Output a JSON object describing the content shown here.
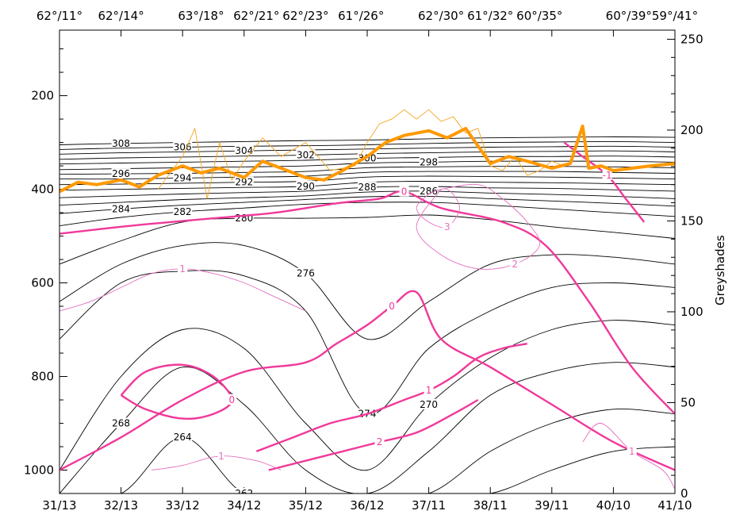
{
  "chart_data": {
    "type": "contour",
    "top_axis_labels": [
      "62°/11°",
      "62°/14°",
      "63°/18°",
      "62°/21°",
      "62°/23°",
      "61°/26°",
      "62°/30°",
      "61°/32°",
      "60°/35°",
      "60°/39°",
      "59°/41°"
    ],
    "top_axis_x": [
      31.0,
      32.0,
      33.3,
      34.2,
      35.0,
      35.9,
      37.2,
      38.0,
      38.8,
      40.25,
      41.0
    ],
    "bottom_axis_labels": [
      "31/13",
      "32/13",
      "33/12",
      "34/12",
      "35/12",
      "36/12",
      "37/11",
      "38/11",
      "39/11",
      "40/10",
      "41/10"
    ],
    "xlim": [
      31,
      41
    ],
    "left_axis": {
      "ticks": [
        200,
        400,
        600,
        800,
        1000
      ],
      "ylim": [
        1050,
        60
      ],
      "direction": "inverted"
    },
    "right_axis": {
      "label": "Greyshades",
      "ticks": [
        0,
        50,
        100,
        150,
        200,
        250
      ],
      "ylim": [
        0,
        255
      ]
    },
    "colors": {
      "isentropes": "#000000",
      "pv_bold": "#f0399a",
      "pv_thin": "#e36fc0",
      "tropopause_bold": "#ff9900",
      "tropopause_thin": "#f5a623"
    },
    "isentropes": [
      {
        "label": "308",
        "x": [
          31,
          32,
          33,
          34,
          35,
          36,
          37,
          38,
          39,
          40,
          41
        ],
        "y": [
          305,
          302,
          300,
          298,
          296,
          295,
          292,
          290,
          289,
          288,
          289
        ]
      },
      {
        "label": "306",
        "x": [
          31,
          32,
          33,
          34,
          35,
          36,
          37,
          38,
          39,
          40,
          41
        ],
        "y": [
          315,
          312,
          310,
          308,
          307,
          305,
          302,
          300,
          299,
          298,
          300
        ]
      },
      {
        "label": "304",
        "x": [
          31,
          32,
          33,
          34,
          35,
          36,
          37,
          38,
          39,
          40,
          41
        ],
        "y": [
          325,
          322,
          320,
          318,
          316,
          314,
          312,
          310,
          309,
          308,
          310
        ]
      },
      {
        "label": "302",
        "x": [
          31,
          32,
          33,
          34,
          35,
          36,
          37,
          38,
          39,
          40,
          41
        ],
        "y": [
          336,
          333,
          331,
          329,
          327,
          324,
          322,
          320,
          319,
          318,
          320
        ]
      },
      {
        "label": "300",
        "x": [
          31,
          32,
          33,
          34,
          35,
          36,
          37,
          38,
          39,
          40,
          41
        ],
        "y": [
          346,
          344,
          342,
          340,
          338,
          334,
          332,
          330,
          330,
          329,
          331
        ]
      },
      {
        "label": "298",
        "x": [
          31,
          32,
          33,
          34,
          35,
          36,
          37,
          38,
          39,
          40,
          41
        ],
        "y": [
          358,
          356,
          354,
          352,
          350,
          344,
          342,
          340,
          340,
          340,
          342
        ]
      },
      {
        "label": "296",
        "x": [
          31,
          32,
          33,
          34,
          35,
          36,
          37,
          38,
          39,
          40,
          41
        ],
        "y": [
          368,
          367,
          366,
          364,
          362,
          354,
          352,
          351,
          351,
          352,
          354
        ]
      },
      {
        "label": "294",
        "x": [
          31,
          32,
          33,
          34,
          35,
          36,
          37,
          38,
          39,
          40,
          41
        ],
        "y": [
          378,
          378,
          376,
          374,
          372,
          364,
          362,
          362,
          362,
          364,
          366
        ]
      },
      {
        "label": "292",
        "x": [
          31,
          32,
          33,
          34,
          35,
          36,
          37,
          38,
          39,
          40,
          41
        ],
        "y": [
          390,
          389,
          387,
          385,
          383,
          374,
          372,
          373,
          374,
          376,
          378
        ]
      },
      {
        "label": "290",
        "x": [
          31,
          32,
          33,
          34,
          35,
          36,
          37,
          38,
          39,
          40,
          41
        ],
        "y": [
          402,
          400,
          398,
          396,
          394,
          385,
          383,
          385,
          386,
          388,
          390
        ]
      },
      {
        "label": "288",
        "x": [
          31,
          32,
          33,
          34,
          35,
          36,
          37,
          38,
          39,
          40,
          41
        ],
        "y": [
          418,
          414,
          410,
          407,
          404,
          396,
          394,
          397,
          398,
          401,
          404
        ]
      },
      {
        "label": "286",
        "x": [
          31,
          32,
          33,
          34,
          35,
          36,
          37,
          38,
          39,
          40,
          41
        ],
        "y": [
          434,
          428,
          422,
          418,
          414,
          406,
          404,
          408,
          411,
          415,
          420
        ]
      },
      {
        "label": "284",
        "x": [
          31,
          32,
          33,
          34,
          35,
          36,
          37,
          38,
          39,
          40,
          41
        ],
        "y": [
          452,
          442,
          434,
          428,
          422,
          416,
          415,
          420,
          425,
          430,
          436
        ]
      },
      {
        "label": "282",
        "x": [
          31,
          32,
          33,
          34,
          35,
          36,
          37,
          38,
          39,
          40,
          41
        ],
        "y": [
          478,
          460,
          448,
          440,
          432,
          428,
          428,
          434,
          442,
          450,
          458
        ]
      },
      {
        "label": "280",
        "x": [
          31,
          32,
          33,
          34,
          35,
          36,
          37,
          38,
          39,
          40,
          41
        ],
        "y": [
          560,
          510,
          470,
          462,
          462,
          460,
          455,
          465,
          480,
          492,
          505
        ]
      },
      {
        "label": "276",
        "x": [
          31,
          32,
          33,
          34,
          35,
          36,
          37,
          38,
          39,
          40,
          41
        ],
        "y": [
          640,
          560,
          520,
          520,
          580,
          720,
          640,
          560,
          540,
          545,
          560
        ]
      },
      {
        "label": "274",
        "x": [
          31,
          32,
          33,
          34,
          35,
          36,
          37,
          38,
          39,
          40,
          41
        ],
        "y": [
          720,
          600,
          575,
          585,
          660,
          880,
          740,
          660,
          610,
          600,
          610
        ]
      },
      {
        "label": "270",
        "x": [
          31,
          32,
          33,
          34,
          35,
          36,
          37,
          38,
          39,
          40,
          41
        ],
        "y": [
          1000,
          800,
          700,
          740,
          900,
          1000,
          860,
          760,
          700,
          680,
          690
        ]
      },
      {
        "label": "268",
        "x": [
          31,
          32,
          33,
          34,
          35,
          36,
          37,
          38,
          39,
          40,
          41
        ],
        "y": [
          1050,
          900,
          780,
          860,
          1000,
          1050,
          960,
          840,
          790,
          770,
          780
        ]
      },
      {
        "label": "264",
        "x": [
          31,
          32,
          33,
          34,
          35,
          36,
          37,
          38,
          39,
          40,
          41
        ],
        "y": [
          1050,
          1050,
          930,
          1050,
          1050,
          1050,
          1050,
          960,
          900,
          870,
          880
        ]
      },
      {
        "label": "262",
        "x": [
          31,
          32,
          33,
          34,
          35,
          36,
          37,
          38,
          39,
          40,
          41
        ],
        "y": [
          1050,
          1050,
          1050,
          1050,
          1050,
          1050,
          1050,
          1050,
          1000,
          960,
          950
        ]
      }
    ],
    "pv_contours": [
      {
        "label": "0",
        "style": "bold",
        "x": [
          31,
          32,
          32.8,
          33.5,
          34.5,
          35.5,
          36.2,
          36.6,
          37.2,
          38.2,
          38.9,
          39.6,
          40.3,
          41
        ],
        "y": [
          495,
          480,
          470,
          462,
          450,
          430,
          420,
          405,
          440,
          470,
          520,
          640,
          780,
          880
        ]
      },
      {
        "label": "0",
        "style": "bold",
        "x": [
          31,
          32,
          33,
          34,
          35,
          35.5,
          36,
          36.4,
          36.8,
          37.2,
          38,
          39,
          40,
          41
        ],
        "y": [
          1000,
          930,
          850,
          790,
          770,
          730,
          690,
          650,
          620,
          720,
          780,
          860,
          940,
          1000
        ]
      },
      {
        "label": "0",
        "style": "bold",
        "x": [
          32.0,
          32.4,
          33,
          33.5,
          33.8,
          33.5,
          33,
          32.4,
          32.0
        ],
        "y": [
          840,
          790,
          775,
          800,
          850,
          880,
          890,
          870,
          840
        ]
      },
      {
        "label": "1",
        "style": "bold",
        "x": [
          34.2,
          34.8,
          35.4,
          36,
          36.6,
          37,
          37.4,
          37.8,
          38.2,
          38.6
        ],
        "y": [
          960,
          930,
          900,
          880,
          850,
          830,
          800,
          760,
          740,
          730
        ]
      },
      {
        "label": "2",
        "style": "bold",
        "x": [
          34.4,
          35,
          35.6,
          36.2,
          36.8,
          37.4,
          37.8
        ],
        "y": [
          1000,
          980,
          960,
          940,
          920,
          880,
          850
        ]
      },
      {
        "label": "-1",
        "style": "bold",
        "x": [
          39.2,
          39.5,
          39.9,
          40.2,
          40.5
        ],
        "y": [
          300,
          330,
          370,
          420,
          470
        ]
      },
      {
        "label": "1",
        "style": "thin",
        "x": [
          31,
          31.5,
          32,
          32.5,
          33,
          33.5,
          34,
          34.5,
          35
        ],
        "y": [
          660,
          640,
          610,
          580,
          570,
          580,
          600,
          630,
          660
        ]
      },
      {
        "label": "2",
        "style": "thin",
        "x": [
          37.2,
          37.8,
          38.2,
          38.6,
          38.8,
          38.4,
          37.8,
          37.2,
          36.8,
          37.2
        ],
        "y": [
          400,
          390,
          420,
          470,
          520,
          560,
          570,
          540,
          480,
          400
        ]
      },
      {
        "label": "3",
        "style": "thin",
        "x": [
          37.0,
          37.3,
          37.5,
          37.3,
          37.0,
          36.8,
          37.0
        ],
        "y": [
          410,
          400,
          440,
          480,
          470,
          440,
          410
        ]
      },
      {
        "label": "1",
        "style": "thin",
        "x": [
          39.5,
          39.8,
          40.3,
          40.8,
          41
        ],
        "y": [
          940,
          900,
          960,
          1000,
          1040
        ]
      },
      {
        "label": "-1",
        "style": "thin",
        "x": [
          32.5,
          33.0,
          33.6,
          34.2,
          34.6
        ],
        "y": [
          1000,
          990,
          970,
          980,
          1000
        ]
      }
    ],
    "tropopause_bold": {
      "x": [
        31,
        31.3,
        31.6,
        32,
        32.3,
        32.6,
        33,
        33.3,
        33.6,
        34,
        34.3,
        34.6,
        35,
        35.3,
        35.6,
        36,
        36.3,
        36.6,
        37,
        37.3,
        37.6,
        38,
        38.3,
        38.6,
        39,
        39.3,
        39.5,
        39.6,
        39.8,
        40,
        40.3,
        40.6,
        41
      ],
      "y": [
        405,
        385,
        390,
        380,
        395,
        370,
        350,
        365,
        355,
        375,
        340,
        355,
        375,
        380,
        360,
        330,
        300,
        285,
        275,
        290,
        270,
        345,
        330,
        340,
        355,
        345,
        265,
        355,
        350,
        360,
        355,
        350,
        345
      ]
    },
    "tropopause_thin": {
      "x": [
        32.6,
        33,
        33.2,
        33.4,
        33.6,
        33.8,
        34,
        34.3,
        34.6,
        35,
        35.4,
        35.8,
        36,
        36.2,
        36.4,
        36.6,
        36.8,
        37,
        37.2,
        37.4,
        37.6,
        37.8,
        38,
        38.2,
        38.4,
        38.6,
        38.8,
        39,
        39.2
      ],
      "y": [
        400,
        330,
        270,
        420,
        300,
        380,
        340,
        290,
        330,
        300,
        360,
        350,
        300,
        260,
        250,
        230,
        250,
        230,
        255,
        245,
        280,
        270,
        350,
        360,
        330,
        370,
        360,
        340,
        350
      ]
    },
    "contour_labels_note": ""
  }
}
